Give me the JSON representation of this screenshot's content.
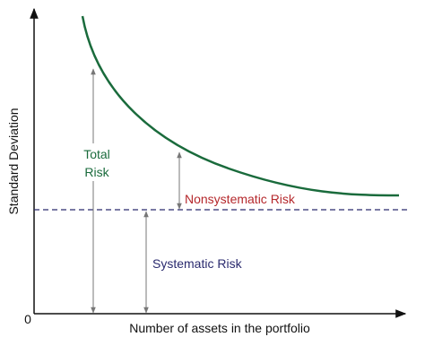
{
  "axes": {
    "y_label": "Standard Deviation",
    "origin": 0,
    "x_label": "Number of assets in the portfolio"
  },
  "annotations": {
    "total_risk": [
      "Total",
      "Risk"
    ],
    "nonsystematic_risk": "Nonsystematic Risk",
    "systematic_risk": "Systematic Risk"
  }
}
